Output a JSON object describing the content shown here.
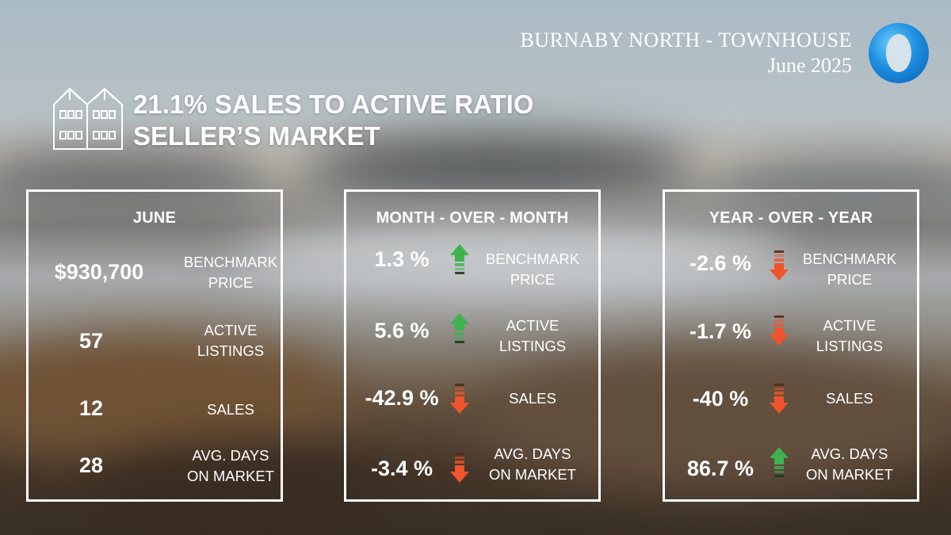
{
  "header": {
    "title": "BURNABY NORTH - TOWNHOUSE",
    "date": "June 2025"
  },
  "headline": {
    "line1": "21.1% SALES TO ACTIVE RATIO",
    "line2": "SELLER’S MARKET"
  },
  "icons": {
    "building": "townhouse-icon",
    "logo": "brand-logo-icon"
  },
  "colors": {
    "up": "#3fb24f",
    "down": "#f0542a"
  },
  "june": {
    "title": "JUNE",
    "rows": [
      {
        "value": "$930,700",
        "label1": "BENCHMARK",
        "label2": "PRICE"
      },
      {
        "value": "57",
        "label1": "ACTIVE",
        "label2": "LISTINGS"
      },
      {
        "value": "12",
        "label1": "SALES",
        "label2": ""
      },
      {
        "value": "28",
        "label1": "AVG. DAYS",
        "label2": "ON MARKET"
      }
    ]
  },
  "mom": {
    "title": "MONTH - OVER - MONTH",
    "rows": [
      {
        "value": "1.3 %",
        "direction": "up",
        "label1": "BENCHMARK",
        "label2": "PRICE"
      },
      {
        "value": "5.6 %",
        "direction": "up",
        "label1": "ACTIVE",
        "label2": "LISTINGS"
      },
      {
        "value": "-42.9 %",
        "direction": "down",
        "label1": "SALES",
        "label2": ""
      },
      {
        "value": "-3.4 %",
        "direction": "down",
        "label1": "AVG. DAYS",
        "label2": "ON MARKET"
      }
    ]
  },
  "yoy": {
    "title": "YEAR - OVER - YEAR",
    "rows": [
      {
        "value": "-2.6 %",
        "direction": "down",
        "label1": "BENCHMARK",
        "label2": "PRICE"
      },
      {
        "value": "-1.7 %",
        "direction": "down",
        "label1": "ACTIVE",
        "label2": "LISTINGS"
      },
      {
        "value": "-40 %",
        "direction": "down",
        "label1": "SALES",
        "label2": ""
      },
      {
        "value": "86.7 %",
        "direction": "up",
        "label1": "AVG. DAYS",
        "label2": "ON MARKET"
      }
    ]
  }
}
